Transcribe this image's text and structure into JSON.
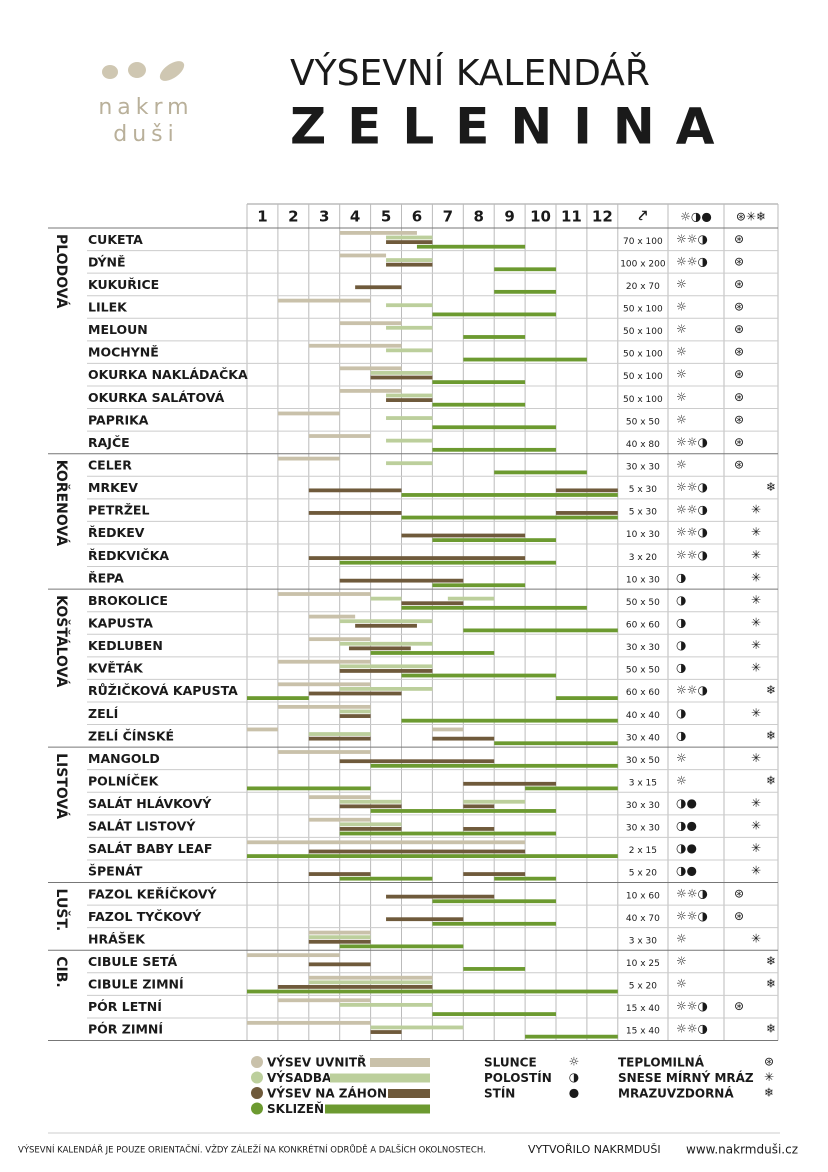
{
  "header": {
    "logo_top": "nakrm",
    "logo_bottom": "duši",
    "title": "VÝSEVNÍ KALENDÁŘ",
    "subtitle": "ZELENINA"
  },
  "table": {
    "months": [
      "1",
      "2",
      "3",
      "4",
      "5",
      "6",
      "7",
      "8",
      "9",
      "10",
      "11",
      "12"
    ],
    "spacing_icon": "⤤",
    "sun_icon": "☼◑●",
    "frost_icon": "⊛✳❄",
    "groups": [
      {
        "label": "PLODOVÁ",
        "from": 0,
        "to": 9
      },
      {
        "label": "KOŘENOVÁ",
        "from": 10,
        "to": 15
      },
      {
        "label": "KOŠŤÁLOVÁ",
        "from": 16,
        "to": 22
      },
      {
        "label": "LISTOVÁ",
        "from": 23,
        "to": 28
      },
      {
        "label": "LUŠT.",
        "from": 29,
        "to": 31
      },
      {
        "label": "CIB.",
        "from": 32,
        "to": 35
      }
    ],
    "rows": [
      {
        "name": "CUKETA",
        "spacing": "70 x 100",
        "sun": "☼☼◑",
        "frost": 0,
        "bars": [
          [
            0,
            4,
            6.5
          ],
          [
            1,
            5.5,
            7
          ],
          [
            2,
            5.5,
            7
          ],
          [
            3,
            6.5,
            10
          ]
        ]
      },
      {
        "name": "DÝNĚ",
        "spacing": "100 x 200",
        "sun": "☼☼◑",
        "frost": 0,
        "bars": [
          [
            0,
            4,
            5.5
          ],
          [
            1,
            5.5,
            7
          ],
          [
            2,
            5.5,
            7
          ],
          [
            3,
            9,
            11
          ]
        ]
      },
      {
        "name": "KUKUŘICE",
        "spacing": "20 x 70",
        "sun": "☼",
        "frost": 0,
        "bars": [
          [
            2,
            4.5,
            6
          ],
          [
            3,
            9,
            11
          ]
        ]
      },
      {
        "name": "LILEK",
        "spacing": "50 x 100",
        "sun": "☼",
        "frost": 0,
        "bars": [
          [
            0,
            2,
            5
          ],
          [
            1,
            5.5,
            7
          ],
          [
            3,
            7,
            11
          ]
        ]
      },
      {
        "name": "MELOUN",
        "spacing": "50 x 100",
        "sun": "☼",
        "frost": 0,
        "bars": [
          [
            0,
            4,
            6
          ],
          [
            1,
            5.5,
            7
          ],
          [
            3,
            8,
            10
          ]
        ]
      },
      {
        "name": "MOCHYNĚ",
        "spacing": "50 x 100",
        "sun": "☼",
        "frost": 0,
        "bars": [
          [
            0,
            3,
            6
          ],
          [
            1,
            5.5,
            7
          ],
          [
            3,
            8,
            12
          ]
        ]
      },
      {
        "name": "OKURKA NAKLÁDAČKA",
        "spacing": "50 x 100",
        "sun": "☼",
        "frost": 0,
        "bars": [
          [
            0,
            4,
            6
          ],
          [
            1,
            5,
            7
          ],
          [
            2,
            5,
            7
          ],
          [
            3,
            7,
            10
          ]
        ]
      },
      {
        "name": "OKURKA SALÁTOVÁ",
        "spacing": "50 x 100",
        "sun": "☼",
        "frost": 0,
        "bars": [
          [
            0,
            4,
            6
          ],
          [
            1,
            5.5,
            7
          ],
          [
            2,
            5.5,
            7
          ],
          [
            3,
            7,
            10
          ]
        ]
      },
      {
        "name": "PAPRIKA",
        "spacing": "50 x 50",
        "sun": "☼",
        "frost": 0,
        "bars": [
          [
            0,
            2,
            4
          ],
          [
            1,
            5.5,
            7
          ],
          [
            3,
            7,
            11
          ]
        ]
      },
      {
        "name": "RAJČE",
        "spacing": "40 x 80",
        "sun": "☼☼◑",
        "frost": 0,
        "bars": [
          [
            0,
            3,
            5
          ],
          [
            1,
            5.5,
            7
          ],
          [
            3,
            7,
            11
          ]
        ]
      },
      {
        "name": "CELER",
        "spacing": "30 x 30",
        "sun": "☼",
        "frost": 0,
        "bars": [
          [
            0,
            2,
            4
          ],
          [
            1,
            5.5,
            7
          ],
          [
            3,
            9,
            12
          ]
        ]
      },
      {
        "name": "MRKEV",
        "spacing": "5 x 30",
        "sun": "☼☼◑",
        "frost": 2,
        "bars": [
          [
            2,
            3,
            6
          ],
          [
            2,
            11,
            13
          ],
          [
            3,
            6,
            13
          ]
        ]
      },
      {
        "name": "PETRŽEL",
        "spacing": "5 x 30",
        "sun": "☼☼◑",
        "frost": 1,
        "bars": [
          [
            2,
            3,
            6
          ],
          [
            2,
            11,
            13
          ],
          [
            3,
            6,
            13
          ]
        ]
      },
      {
        "name": "ŘEDKEV",
        "spacing": "10 x 30",
        "sun": "☼☼◑",
        "frost": 1,
        "bars": [
          [
            2,
            6,
            10
          ],
          [
            3,
            7,
            11
          ]
        ]
      },
      {
        "name": "ŘEDKVIČKA",
        "spacing": "3 x 20",
        "sun": "☼☼◑",
        "frost": 1,
        "bars": [
          [
            2,
            3,
            10
          ],
          [
            3,
            4,
            11
          ]
        ]
      },
      {
        "name": "ŘEPA",
        "spacing": "10 x 30",
        "sun": "◑",
        "frost": 1,
        "bars": [
          [
            2,
            4,
            8
          ],
          [
            3,
            7,
            10
          ]
        ]
      },
      {
        "name": "BROKOLICE",
        "spacing": "50 x 50",
        "sun": "◑",
        "frost": 1,
        "bars": [
          [
            0,
            2,
            5
          ],
          [
            1,
            5,
            6
          ],
          [
            1,
            7.5,
            9
          ],
          [
            2,
            6,
            8
          ],
          [
            3,
            6,
            12
          ]
        ]
      },
      {
        "name": "KAPUSTA",
        "spacing": "60 x 60",
        "sun": "◑",
        "frost": 1,
        "bars": [
          [
            0,
            3,
            4.5
          ],
          [
            1,
            4,
            7
          ],
          [
            2,
            4.5,
            6.5
          ],
          [
            3,
            8,
            13
          ]
        ]
      },
      {
        "name": "KEDLUBEN",
        "spacing": "30 x 30",
        "sun": "◑",
        "frost": 1,
        "bars": [
          [
            0,
            3,
            5
          ],
          [
            1,
            4,
            7
          ],
          [
            2,
            4.3,
            6.3
          ],
          [
            3,
            5,
            9
          ]
        ]
      },
      {
        "name": "KVĚTÁK",
        "spacing": "50 x 50",
        "sun": "◑",
        "frost": 1,
        "bars": [
          [
            0,
            2,
            5
          ],
          [
            1,
            4,
            7
          ],
          [
            2,
            4,
            7
          ],
          [
            3,
            6,
            11
          ]
        ]
      },
      {
        "name": "RŮŽIČKOVÁ KAPUSTA",
        "spacing": "60 x 60",
        "sun": "☼☼◑",
        "frost": 2,
        "bars": [
          [
            0,
            2,
            5
          ],
          [
            1,
            4,
            7
          ],
          [
            2,
            3,
            6
          ],
          [
            3,
            1,
            3
          ],
          [
            3,
            11,
            13
          ]
        ]
      },
      {
        "name": "ZELÍ",
        "spacing": "40 x 40",
        "sun": "◑",
        "frost": 1,
        "bars": [
          [
            0,
            2,
            5
          ],
          [
            1,
            4,
            5
          ],
          [
            2,
            4,
            5
          ],
          [
            3,
            6,
            13
          ]
        ]
      },
      {
        "name": "ZELÍ ČÍNSKÉ",
        "spacing": "30 x 40",
        "sun": "◑",
        "frost": 2,
        "bars": [
          [
            0,
            1,
            2
          ],
          [
            0,
            7,
            8
          ],
          [
            1,
            3,
            5
          ],
          [
            2,
            3,
            5
          ],
          [
            2,
            7,
            9
          ],
          [
            3,
            9,
            13
          ]
        ]
      },
      {
        "name": "MANGOLD",
        "spacing": "30 x 50",
        "sun": "☼",
        "frost": 1,
        "bars": [
          [
            0,
            2,
            5
          ],
          [
            2,
            4,
            9
          ],
          [
            3,
            5,
            13
          ]
        ]
      },
      {
        "name": "POLNÍČEK",
        "spacing": "3 x 15",
        "sun": "☼",
        "frost": 2,
        "bars": [
          [
            2,
            8,
            11
          ],
          [
            3,
            1,
            5
          ],
          [
            3,
            10,
            13
          ]
        ]
      },
      {
        "name": "SALÁT HLÁVKOVÝ",
        "spacing": "30 x 30",
        "sun": "◑●",
        "frost": 1,
        "bars": [
          [
            0,
            3,
            5
          ],
          [
            1,
            4,
            6
          ],
          [
            1,
            8,
            10
          ],
          [
            2,
            4,
            6
          ],
          [
            2,
            8,
            9
          ],
          [
            3,
            5,
            11
          ]
        ]
      },
      {
        "name": "SALÁT LISTOVÝ",
        "spacing": "30 x 30",
        "sun": "◑●",
        "frost": 1,
        "bars": [
          [
            0,
            3,
            5
          ],
          [
            1,
            4,
            6
          ],
          [
            2,
            4,
            6
          ],
          [
            2,
            8,
            9
          ],
          [
            3,
            4,
            11
          ]
        ]
      },
      {
        "name": "SALÁT BABY LEAF",
        "spacing": "2 x 15",
        "sun": "◑●",
        "frost": 1,
        "bars": [
          [
            0,
            1,
            10
          ],
          [
            2,
            3,
            10
          ],
          [
            3,
            1,
            13
          ]
        ]
      },
      {
        "name": "ŠPENÁT",
        "spacing": "5 x 20",
        "sun": "◑●",
        "frost": 1,
        "bars": [
          [
            2,
            3,
            5
          ],
          [
            2,
            8,
            10
          ],
          [
            3,
            4,
            7
          ],
          [
            3,
            9,
            11
          ]
        ]
      },
      {
        "name": "FAZOL KEŘÍČKOVÝ",
        "spacing": "10 x 60",
        "sun": "☼☼◑",
        "frost": 0,
        "bars": [
          [
            2,
            5.5,
            9
          ],
          [
            3,
            7,
            11
          ]
        ]
      },
      {
        "name": "FAZOL TYČKOVÝ",
        "spacing": "40 x 70",
        "sun": "☼☼◑",
        "frost": 0,
        "bars": [
          [
            2,
            5.5,
            8
          ],
          [
            3,
            7,
            11
          ]
        ]
      },
      {
        "name": "HRÁŠEK",
        "spacing": "3 x 30",
        "sun": "☼",
        "frost": 1,
        "bars": [
          [
            0,
            3,
            5
          ],
          [
            1,
            3,
            5
          ],
          [
            2,
            3,
            5
          ],
          [
            3,
            4,
            8
          ]
        ]
      },
      {
        "name": "CIBULE SETÁ",
        "spacing": "10 x 25",
        "sun": "☼",
        "frost": 2,
        "bars": [
          [
            0,
            1,
            4
          ],
          [
            2,
            3,
            5
          ],
          [
            3,
            8,
            10
          ]
        ]
      },
      {
        "name": "CIBULE ZIMNÍ",
        "spacing": "5 x 20",
        "sun": "☼",
        "frost": 2,
        "bars": [
          [
            0,
            3,
            7
          ],
          [
            1,
            3,
            7
          ],
          [
            2,
            2,
            7
          ],
          [
            3,
            1,
            13
          ]
        ]
      },
      {
        "name": "PÓR LETNÍ",
        "spacing": "15 x 40",
        "sun": "☼☼◑",
        "frost": 0,
        "bars": [
          [
            0,
            2,
            5
          ],
          [
            1,
            4,
            7
          ],
          [
            3,
            7,
            11
          ]
        ]
      },
      {
        "name": "PÓR ZIMNÍ",
        "spacing": "15 x 40",
        "sun": "☼☼◑",
        "frost": 2,
        "bars": [
          [
            0,
            1,
            5
          ],
          [
            1,
            5,
            8
          ],
          [
            2,
            5,
            6
          ],
          [
            3,
            10,
            13
          ]
        ]
      }
    ]
  },
  "legend": {
    "bars": [
      {
        "label": "VÝSEV UVNITŘ",
        "color": "#c9c1aa"
      },
      {
        "label": "VÝSADBA",
        "color": "#bccf9c"
      },
      {
        "label": "VÝSEV NA ZÁHON",
        "color": "#6f5a3b"
      },
      {
        "label": "SKLIZEŇ",
        "color": "#6c9a30"
      }
    ],
    "sun": [
      {
        "label": "SLUNCE",
        "symbol": "☼"
      },
      {
        "label": "POLOSTÍN",
        "symbol": "◑"
      },
      {
        "label": "STÍN",
        "symbol": "●"
      }
    ],
    "frost": [
      {
        "label": "TEPLOMILNÁ",
        "symbol": "⊛"
      },
      {
        "label": "SNESE MÍRNÝ MRÁZ",
        "symbol": "✳"
      },
      {
        "label": "MRAZUVZDORNÁ",
        "symbol": "❄"
      }
    ]
  },
  "footer": {
    "note": "VÝSEVNÍ KALENDÁŘ JE POUZE ORIENTAČNÍ. VŽDY ZÁLEŽÍ NA KONKRÉTNÍ ODRŮDĚ A DALŠÍCH OKOLNOSTECH.",
    "credit": "VYTVOŘILO NAKRMDUŠI",
    "url": "www.nakrmduši.cz"
  }
}
